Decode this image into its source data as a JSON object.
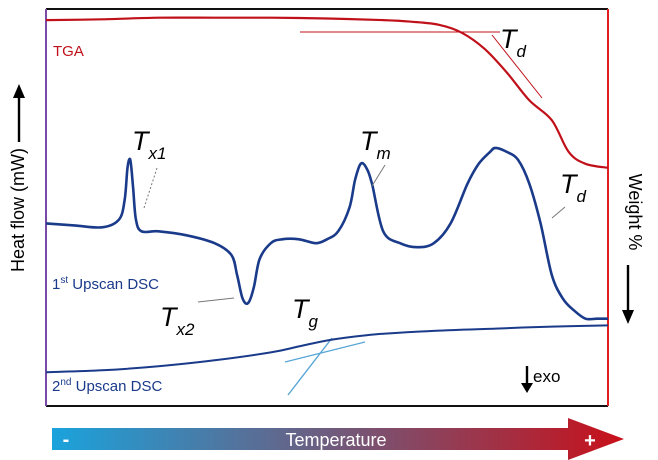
{
  "chart_data": {
    "type": "line",
    "title": "",
    "xlabel": "Temperature",
    "ylabel_left": "Heat flow (mW)",
    "ylabel_right": "Weight %",
    "x_scale_labels": {
      "min": "-",
      "max": "+"
    },
    "grid": false,
    "legend": "none",
    "exo_label": "exo",
    "series": [
      {
        "name": "TGA",
        "label": "TGA",
        "color": "#c0101a",
        "x": [
          0.0,
          0.1,
          0.2,
          0.3,
          0.4,
          0.5,
          0.6,
          0.65,
          0.7,
          0.74,
          0.78,
          0.82,
          0.86,
          0.9,
          0.93,
          0.96,
          1.0
        ],
        "y": [
          0.972,
          0.974,
          0.978,
          0.978,
          0.978,
          0.976,
          0.972,
          0.968,
          0.96,
          0.94,
          0.9,
          0.84,
          0.77,
          0.72,
          0.64,
          0.61,
          0.6
        ]
      },
      {
        "name": "1st Upscan DSC",
        "label_main": "1",
        "label_sup": "st",
        "label_rest": " Upscan DSC",
        "color": "#1a3a8a",
        "x": [
          0.0,
          0.05,
          0.1,
          0.13,
          0.14,
          0.145,
          0.15,
          0.155,
          0.16,
          0.17,
          0.2,
          0.25,
          0.3,
          0.33,
          0.34,
          0.35,
          0.36,
          0.37,
          0.38,
          0.4,
          0.42,
          0.45,
          0.48,
          0.5,
          0.52,
          0.54,
          0.55,
          0.56,
          0.57,
          0.58,
          0.6,
          0.63,
          0.66,
          0.69,
          0.72,
          0.75,
          0.77,
          0.79,
          0.8,
          0.82,
          0.84,
          0.86,
          0.88,
          0.9,
          0.92,
          0.94,
          0.96,
          0.98,
          1.0
        ],
        "y": [
          0.46,
          0.455,
          0.45,
          0.47,
          0.52,
          0.6,
          0.62,
          0.55,
          0.47,
          0.44,
          0.44,
          0.43,
          0.41,
          0.38,
          0.33,
          0.27,
          0.26,
          0.3,
          0.37,
          0.41,
          0.42,
          0.42,
          0.41,
          0.42,
          0.44,
          0.5,
          0.57,
          0.61,
          0.6,
          0.56,
          0.44,
          0.41,
          0.4,
          0.41,
          0.46,
          0.56,
          0.61,
          0.64,
          0.65,
          0.64,
          0.62,
          0.56,
          0.46,
          0.33,
          0.27,
          0.24,
          0.22,
          0.22,
          0.22
        ]
      },
      {
        "name": "2nd Upscan DSC",
        "label_main": "2",
        "label_sup": "nd",
        "label_rest": " Upscan DSC",
        "color": "#1a3a8a",
        "x": [
          0.0,
          0.1,
          0.2,
          0.3,
          0.4,
          0.45,
          0.5,
          0.55,
          0.6,
          0.7,
          0.8,
          0.9,
          1.0
        ],
        "y": [
          0.085,
          0.09,
          0.1,
          0.115,
          0.135,
          0.15,
          0.165,
          0.175,
          0.182,
          0.19,
          0.195,
          0.2,
          0.203
        ]
      }
    ],
    "annotations": [
      {
        "key": "Tx1",
        "main": "T",
        "sub": "x1"
      },
      {
        "key": "Tx2",
        "main": "T",
        "sub": "x2"
      },
      {
        "key": "Tm",
        "main": "T",
        "sub": "m"
      },
      {
        "key": "Td_dsc",
        "main": "T",
        "sub": "d"
      },
      {
        "key": "Td_tga",
        "main": "T",
        "sub": "d"
      },
      {
        "key": "Tg",
        "main": "T",
        "sub": "g"
      }
    ],
    "colors": {
      "tga": "#c0101a",
      "dsc": "#1a3a8a",
      "tangent": "#5aa6d6",
      "left_axis": "#7a4aa8",
      "right_axis": "#e02020",
      "gradient_start": "#1aa3dc",
      "gradient_end": "#c8101a"
    }
  }
}
